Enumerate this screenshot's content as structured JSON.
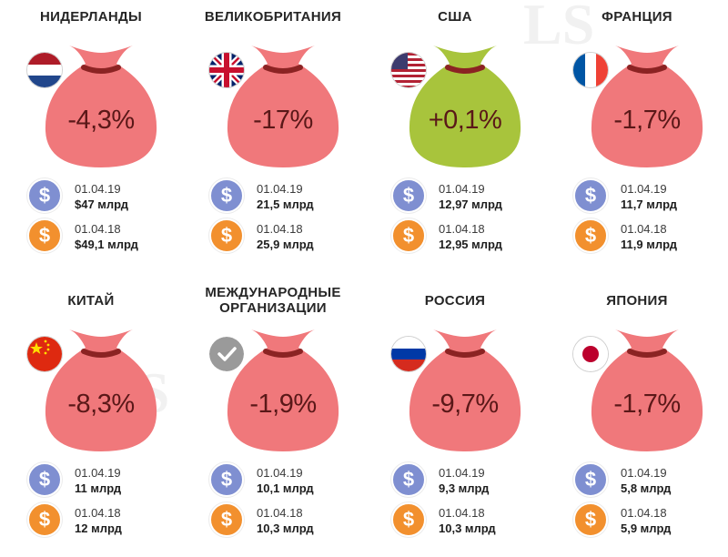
{
  "cards": [
    {
      "country": "НИДЕРЛАНДЫ",
      "flag": "netherlands-flag",
      "percent": "-4,3%",
      "bag_color": "#f0787b",
      "date_2019": "01.04.19",
      "value_2019": "$47 млрд",
      "date_2018": "01.04.18",
      "value_2018": "$49,1 млрд"
    },
    {
      "country": "ВЕЛИКОБРИТАНИЯ",
      "flag": "uk-flag",
      "percent": "-17%",
      "bag_color": "#f0787b",
      "date_2019": "01.04.19",
      "value_2019": "21,5 млрд",
      "date_2018": "01.04.18",
      "value_2018": "25,9 млрд"
    },
    {
      "country": "США",
      "flag": "usa-flag",
      "percent": "+0,1%",
      "bag_color": "#a8c43c",
      "date_2019": "01.04.19",
      "value_2019": "12,97 млрд",
      "date_2018": "01.04.18",
      "value_2018": "12,95 млрд"
    },
    {
      "country": "ФРАНЦИЯ",
      "flag": "france-flag",
      "percent": "-1,7%",
      "bag_color": "#f0787b",
      "date_2019": "01.04.19",
      "value_2019": "11,7 млрд",
      "date_2018": "01.04.18",
      "value_2018": "11,9 млрд"
    },
    {
      "country": "КИТАЙ",
      "flag": "china-flag",
      "percent": "-8,3%",
      "bag_color": "#f0787b",
      "date_2019": "01.04.19",
      "value_2019": "11 млрд",
      "date_2018": "01.04.18",
      "value_2018": "12 млрд"
    },
    {
      "country": "МЕЖДУНАРОДНЫЕ ОРГАНИЗАЦИИ",
      "flag": "checkmark-badge",
      "percent": "-1,9%",
      "bag_color": "#f0787b",
      "date_2019": "01.04.19",
      "value_2019": "10,1 млрд",
      "date_2018": "01.04.18",
      "value_2018": "10,3 млрд"
    },
    {
      "country": "РОССИЯ",
      "flag": "russia-flag",
      "percent": "-9,7%",
      "bag_color": "#f0787b",
      "date_2019": "01.04.19",
      "value_2019": "9,3 млрд",
      "date_2018": "01.04.18",
      "value_2018": "10,3 млрд"
    },
    {
      "country": "ЯПОНИЯ",
      "flag": "japan-flag",
      "percent": "-1,7%",
      "bag_color": "#f0787b",
      "date_2019": "01.04.19",
      "value_2019": "5,8 млрд",
      "date_2018": "01.04.18",
      "value_2018": "5,9 млрд"
    }
  ],
  "coin_symbol": "$",
  "colors": {
    "coin_2019": "#7f8fd1",
    "coin_2018": "#f2902e",
    "bag_tie": "#8b2323"
  }
}
